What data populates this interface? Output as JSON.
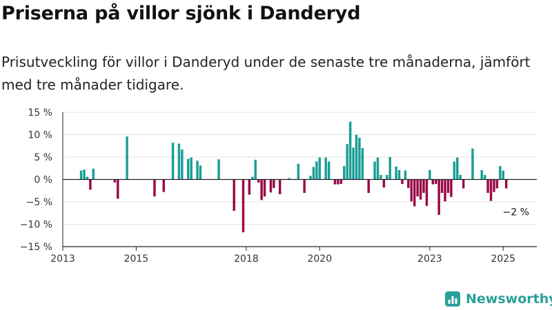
{
  "title": "Priserna på villor sjönk i Danderyd",
  "subtitle": "Prisutveckling för villor i Danderyd under de senaste tre månaderna, jämfört med tre månader tidigare.",
  "brand": "Newsworthy",
  "colors": {
    "positive": "#1a9e96",
    "negative": "#990a46",
    "axis": "#222222",
    "grid": "#e0e0e0",
    "brand": "#2aa09a"
  },
  "chart_data": {
    "type": "bar",
    "grid": true,
    "ylim": [
      -15,
      15
    ],
    "xlim": [
      "2013-01",
      "2025-12"
    ],
    "y_ticks": [
      15,
      10,
      5,
      0,
      -5,
      -10,
      -15
    ],
    "y_tick_labels": [
      "15 %",
      "10 %",
      "5 %",
      "0 %",
      "−5 %",
      "−10 %",
      "−15 %"
    ],
    "x_ticks": [
      "2013-01",
      "2015-01",
      "2018-01",
      "2020-01",
      "2023-01",
      "2025-01"
    ],
    "x_tick_labels": [
      "2013",
      "2015",
      "2018",
      "2020",
      "2023",
      "2025"
    ],
    "annotation": {
      "text": "−2 %",
      "x": "2025-04",
      "y": -2
    },
    "points": [
      [
        "2013-07",
        2.0
      ],
      [
        "2013-08",
        2.2
      ],
      [
        "2013-09",
        0.6
      ],
      [
        "2013-10",
        -2.3
      ],
      [
        "2013-11",
        2.4
      ],
      [
        "2014-06",
        -0.7
      ],
      [
        "2014-07",
        -4.3
      ],
      [
        "2014-10",
        9.6
      ],
      [
        "2015-07",
        -3.8
      ],
      [
        "2015-10",
        -2.8
      ],
      [
        "2016-01",
        8.2
      ],
      [
        "2016-03",
        8.0
      ],
      [
        "2016-04",
        6.7
      ],
      [
        "2016-06",
        4.6
      ],
      [
        "2016-07",
        4.9
      ],
      [
        "2016-09",
        4.2
      ],
      [
        "2016-10",
        3.1
      ],
      [
        "2017-04",
        4.5
      ],
      [
        "2017-09",
        -7.0
      ],
      [
        "2017-12",
        -11.8
      ],
      [
        "2018-02",
        -3.4
      ],
      [
        "2018-03",
        0.6
      ],
      [
        "2018-04",
        4.4
      ],
      [
        "2018-05",
        -0.7
      ],
      [
        "2018-06",
        -4.6
      ],
      [
        "2018-07",
        -3.8
      ],
      [
        "2018-09",
        -2.9
      ],
      [
        "2018-10",
        -1.9
      ],
      [
        "2018-12",
        -3.3
      ],
      [
        "2019-03",
        0.3
      ],
      [
        "2019-06",
        3.5
      ],
      [
        "2019-08",
        -3.0
      ],
      [
        "2019-10",
        0.8
      ],
      [
        "2019-11",
        2.8
      ],
      [
        "2019-12",
        4.0
      ],
      [
        "2020-01",
        4.9
      ],
      [
        "2020-03",
        4.9
      ],
      [
        "2020-04",
        4.0
      ],
      [
        "2020-06",
        -1.1
      ],
      [
        "2020-07",
        -1.1
      ],
      [
        "2020-08",
        -1.0
      ],
      [
        "2020-09",
        3.0
      ],
      [
        "2020-10",
        7.9
      ],
      [
        "2020-11",
        12.9
      ],
      [
        "2020-12",
        7.1
      ],
      [
        "2021-01",
        10.0
      ],
      [
        "2021-02",
        9.3
      ],
      [
        "2021-03",
        7.0
      ],
      [
        "2021-05",
        -3.0
      ],
      [
        "2021-07",
        4.0
      ],
      [
        "2021-08",
        4.9
      ],
      [
        "2021-09",
        1.0
      ],
      [
        "2021-10",
        -1.8
      ],
      [
        "2021-11",
        1.0
      ],
      [
        "2021-12",
        5.0
      ],
      [
        "2022-02",
        2.9
      ],
      [
        "2022-03",
        2.1
      ],
      [
        "2022-04",
        -1.0
      ],
      [
        "2022-05",
        2.0
      ],
      [
        "2022-06",
        -1.9
      ],
      [
        "2022-07",
        -4.9
      ],
      [
        "2022-08",
        -6.0
      ],
      [
        "2022-09",
        -3.8
      ],
      [
        "2022-10",
        -4.5
      ],
      [
        "2022-11",
        -3.0
      ],
      [
        "2022-12",
        -5.9
      ],
      [
        "2023-01",
        2.1
      ],
      [
        "2023-02",
        -1.1
      ],
      [
        "2023-03",
        -1.0
      ],
      [
        "2023-04",
        -7.9
      ],
      [
        "2023-05",
        -3.0
      ],
      [
        "2023-06",
        -4.9
      ],
      [
        "2023-07",
        -3.0
      ],
      [
        "2023-08",
        -3.9
      ],
      [
        "2023-09",
        4.0
      ],
      [
        "2023-10",
        4.9
      ],
      [
        "2023-11",
        1.0
      ],
      [
        "2023-12",
        -2.0
      ],
      [
        "2024-03",
        6.9
      ],
      [
        "2024-06",
        2.1
      ],
      [
        "2024-07",
        1.0
      ],
      [
        "2024-08",
        -3.0
      ],
      [
        "2024-09",
        -4.8
      ],
      [
        "2024-10",
        -2.8
      ],
      [
        "2024-11",
        -2.0
      ],
      [
        "2024-12",
        3.0
      ],
      [
        "2025-01",
        2.0
      ],
      [
        "2025-02",
        -2.0
      ]
    ]
  }
}
